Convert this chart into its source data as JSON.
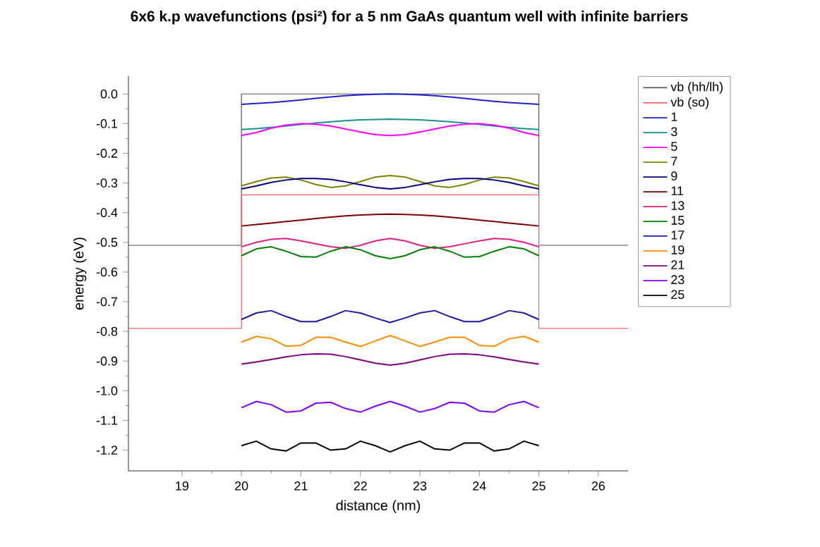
{
  "chart_data": {
    "type": "line",
    "title": "6x6 k.p wavefunctions (psi²) for a 5 nm GaAs quantum well with infinite barriers",
    "xlabel": "distance (nm)",
    "ylabel": "energy (eV)",
    "xlim": [
      18.1,
      26.5
    ],
    "ylim": [
      -1.27,
      0.06
    ],
    "xticks": [
      19,
      20,
      21,
      22,
      23,
      24,
      25,
      26
    ],
    "yticks": [
      {
        "value": 0,
        "label": "0.0"
      },
      {
        "value": -0.1,
        "label": "-0.1"
      },
      {
        "value": -0.2,
        "label": "-0.2"
      },
      {
        "value": -0.3,
        "label": "-0.3"
      },
      {
        "value": -0.4,
        "label": "-0.4"
      },
      {
        "value": -0.5,
        "label": "-0.5"
      },
      {
        "value": -0.6,
        "label": "-0.6"
      },
      {
        "value": -0.7,
        "label": "-0.7"
      },
      {
        "value": -0.8,
        "label": "-0.8"
      },
      {
        "value": -0.9,
        "label": "-0.9"
      },
      {
        "value": -1.0,
        "label": "-1.0"
      },
      {
        "value": -1.1,
        "label": "-1.1"
      },
      {
        "value": -1.2,
        "label": "-1.2"
      }
    ],
    "grid": false,
    "legend": "right",
    "line_style": "solid",
    "x": [
      20,
      20.25,
      20.5,
      20.75,
      21,
      21.25,
      21.5,
      21.75,
      22,
      22.25,
      22.5,
      22.75,
      23,
      23.25,
      23.5,
      23.75,
      24,
      24.25,
      24.5,
      24.75,
      25
    ],
    "series": [
      {
        "name": "vb (hh/lh)",
        "color": "#555555",
        "x": [
          18.1,
          20,
          20,
          25,
          25,
          26.5
        ],
        "values": [
          -0.51,
          -0.51,
          0,
          0,
          -0.51,
          -0.51
        ]
      },
      {
        "name": "vb (so)",
        "color": "#ff6060",
        "x": [
          18.1,
          20,
          20,
          25,
          25,
          26.5
        ],
        "values": [
          -0.79,
          -0.79,
          -0.34,
          -0.34,
          -0.79,
          -0.79
        ]
      },
      {
        "name": "1",
        "color": "#1f1fd0",
        "values": [
          -0.035,
          -0.032,
          -0.029,
          -0.025,
          -0.02,
          -0.015,
          -0.01,
          -0.006,
          -0.003,
          -0.001,
          0,
          -0.001,
          -0.003,
          -0.006,
          -0.01,
          -0.015,
          -0.02,
          -0.025,
          -0.029,
          -0.032,
          -0.035
        ]
      },
      {
        "name": "3",
        "color": "#1a9090",
        "values": [
          -0.12,
          -0.117,
          -0.113,
          -0.108,
          -0.103,
          -0.098,
          -0.094,
          -0.09,
          -0.087,
          -0.086,
          -0.085,
          -0.086,
          -0.087,
          -0.09,
          -0.094,
          -0.098,
          -0.103,
          -0.108,
          -0.113,
          -0.117,
          -0.12
        ]
      },
      {
        "name": "5",
        "color": "#ff00ff",
        "values": [
          -0.14,
          -0.13,
          -0.115,
          -0.105,
          -0.1,
          -0.102,
          -0.108,
          -0.118,
          -0.128,
          -0.137,
          -0.14,
          -0.137,
          -0.128,
          -0.118,
          -0.108,
          -0.102,
          -0.1,
          -0.105,
          -0.115,
          -0.13,
          -0.14
        ]
      },
      {
        "name": "7",
        "color": "#808000",
        "values": [
          -0.31,
          -0.295,
          -0.283,
          -0.28,
          -0.29,
          -0.305,
          -0.315,
          -0.31,
          -0.295,
          -0.28,
          -0.275,
          -0.28,
          -0.295,
          -0.31,
          -0.315,
          -0.305,
          -0.29,
          -0.28,
          -0.283,
          -0.295,
          -0.31
        ]
      },
      {
        "name": "9",
        "color": "#000080",
        "values": [
          -0.32,
          -0.31,
          -0.298,
          -0.29,
          -0.285,
          -0.285,
          -0.288,
          -0.296,
          -0.306,
          -0.315,
          -0.32,
          -0.315,
          -0.306,
          -0.296,
          -0.288,
          -0.285,
          -0.285,
          -0.29,
          -0.298,
          -0.31,
          -0.32
        ]
      },
      {
        "name": "11",
        "color": "#800000",
        "values": [
          -0.445,
          -0.44,
          -0.435,
          -0.43,
          -0.425,
          -0.42,
          -0.415,
          -0.411,
          -0.408,
          -0.406,
          -0.405,
          -0.406,
          -0.408,
          -0.411,
          -0.415,
          -0.42,
          -0.425,
          -0.43,
          -0.435,
          -0.44,
          -0.445
        ]
      },
      {
        "name": "13",
        "color": "#e0207f",
        "values": [
          -0.515,
          -0.5,
          -0.49,
          -0.487,
          -0.495,
          -0.505,
          -0.515,
          -0.52,
          -0.51,
          -0.495,
          -0.487,
          -0.495,
          -0.51,
          -0.52,
          -0.515,
          -0.505,
          -0.495,
          -0.487,
          -0.49,
          -0.5,
          -0.515
        ]
      },
      {
        "name": "15",
        "color": "#008000",
        "values": [
          -0.545,
          -0.522,
          -0.515,
          -0.53,
          -0.548,
          -0.55,
          -0.53,
          -0.515,
          -0.525,
          -0.545,
          -0.555,
          -0.545,
          -0.525,
          -0.515,
          -0.53,
          -0.55,
          -0.548,
          -0.53,
          -0.515,
          -0.522,
          -0.545
        ]
      },
      {
        "name": "17",
        "color": "#1a1aa8",
        "values": [
          -0.76,
          -0.738,
          -0.73,
          -0.75,
          -0.767,
          -0.767,
          -0.75,
          -0.73,
          -0.738,
          -0.755,
          -0.77,
          -0.755,
          -0.738,
          -0.73,
          -0.75,
          -0.767,
          -0.767,
          -0.75,
          -0.73,
          -0.738,
          -0.76
        ]
      },
      {
        "name": "19",
        "color": "#ff8c00",
        "values": [
          -0.836,
          -0.817,
          -0.825,
          -0.85,
          -0.847,
          -0.82,
          -0.82,
          -0.836,
          -0.851,
          -0.832,
          -0.814,
          -0.832,
          -0.851,
          -0.836,
          -0.82,
          -0.82,
          -0.847,
          -0.85,
          -0.825,
          -0.817,
          -0.836
        ]
      },
      {
        "name": "21",
        "color": "#800080",
        "values": [
          -0.91,
          -0.903,
          -0.895,
          -0.886,
          -0.879,
          -0.876,
          -0.877,
          -0.885,
          -0.896,
          -0.907,
          -0.914,
          -0.907,
          -0.896,
          -0.885,
          -0.877,
          -0.876,
          -0.879,
          -0.886,
          -0.895,
          -0.903,
          -0.91
        ]
      },
      {
        "name": "23",
        "color": "#8000ff",
        "values": [
          -1.057,
          -1.036,
          -1.047,
          -1.072,
          -1.068,
          -1.042,
          -1.039,
          -1.06,
          -1.072,
          -1.052,
          -1.036,
          -1.052,
          -1.072,
          -1.06,
          -1.039,
          -1.042,
          -1.068,
          -1.072,
          -1.047,
          -1.036,
          -1.057
        ]
      },
      {
        "name": "25",
        "color": "#000000",
        "values": [
          -1.185,
          -1.17,
          -1.196,
          -1.203,
          -1.176,
          -1.176,
          -1.2,
          -1.196,
          -1.17,
          -1.185,
          -1.206,
          -1.185,
          -1.17,
          -1.196,
          -1.2,
          -1.176,
          -1.176,
          -1.203,
          -1.196,
          -1.17,
          -1.185
        ]
      }
    ]
  }
}
